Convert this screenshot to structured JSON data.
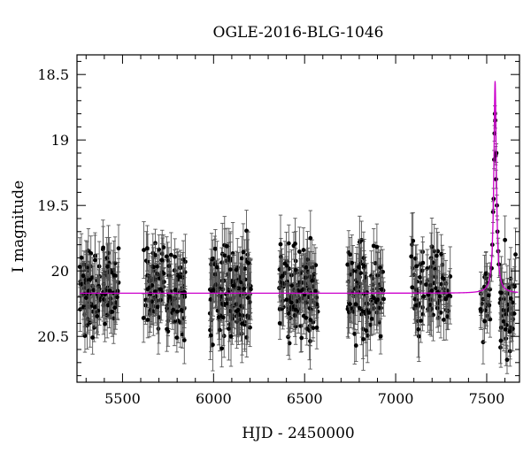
{
  "chart_data": {
    "type": "scatter",
    "title": "OGLE-2016-BLG-1046",
    "xlabel": "HJD - 2450000",
    "ylabel": "I magnitude",
    "xlim": [
      5250,
      7680
    ],
    "ylim": [
      20.85,
      18.35
    ],
    "y_inverted": true,
    "x_ticks": [
      5500,
      6000,
      6500,
      7000,
      7500
    ],
    "y_ticks": [
      18.5,
      19,
      19.5,
      20,
      20.5
    ],
    "x_tick_labels": [
      "5500",
      "6000",
      "6500",
      "7000",
      "7500"
    ],
    "y_tick_labels": [
      "18.5",
      "19",
      "19.5",
      "20",
      "20.5"
    ],
    "grid": false,
    "colors": {
      "points": "#000000",
      "errorbars": "#555555",
      "model": "#cc00cc"
    },
    "baseline_mag": 20.17,
    "series": [
      {
        "kind": "points_with_errorbars",
        "seasons": [
          {
            "start": 5265,
            "end": 5480,
            "n": 120,
            "mean_mag": 20.15,
            "scatter": 0.15,
            "err": 0.15
          },
          {
            "start": 5615,
            "end": 5845,
            "n": 130,
            "mean_mag": 20.16,
            "scatter": 0.16,
            "err": 0.15
          },
          {
            "start": 5980,
            "end": 6205,
            "n": 140,
            "mean_mag": 20.17,
            "scatter": 0.17,
            "err": 0.16
          },
          {
            "start": 6360,
            "end": 6575,
            "n": 130,
            "mean_mag": 20.16,
            "scatter": 0.16,
            "err": 0.15
          },
          {
            "start": 6735,
            "end": 6935,
            "n": 100,
            "mean_mag": 20.17,
            "scatter": 0.16,
            "err": 0.16
          },
          {
            "start": 7085,
            "end": 7300,
            "n": 90,
            "mean_mag": 20.15,
            "scatter": 0.15,
            "err": 0.16
          },
          {
            "start": 7455,
            "end": 7520,
            "n": 25,
            "mean_mag": 20.2,
            "scatter": 0.12,
            "err": 0.12
          },
          {
            "start": 7570,
            "end": 7660,
            "n": 45,
            "mean_mag": 20.22,
            "scatter": 0.18,
            "err": 0.16
          }
        ],
        "event_points": [
          {
            "x": 7527,
            "y": 19.98,
            "err": 0.1
          },
          {
            "x": 7531,
            "y": 19.8,
            "err": 0.09
          },
          {
            "x": 7535,
            "y": 19.55,
            "err": 0.08
          },
          {
            "x": 7538,
            "y": 19.45,
            "err": 0.08
          },
          {
            "x": 7541,
            "y": 19.15,
            "err": 0.07
          },
          {
            "x": 7543,
            "y": 18.95,
            "err": 0.06
          },
          {
            "x": 7545,
            "y": 18.8,
            "err": 0.06
          },
          {
            "x": 7547,
            "y": 18.85,
            "err": 0.06
          },
          {
            "x": 7549,
            "y": 19.12,
            "err": 0.07
          },
          {
            "x": 7551,
            "y": 19.3,
            "err": 0.07
          },
          {
            "x": 7553,
            "y": 19.1,
            "err": 0.07
          },
          {
            "x": 7556,
            "y": 19.5,
            "err": 0.08
          },
          {
            "x": 7559,
            "y": 19.7,
            "err": 0.09
          },
          {
            "x": 7563,
            "y": 19.85,
            "err": 0.1
          },
          {
            "x": 7567,
            "y": 19.95,
            "err": 0.1
          }
        ]
      },
      {
        "kind": "model_curve",
        "baseline": 20.17,
        "t0": 7546,
        "peak_mag": 18.55,
        "width_days": 9
      }
    ]
  }
}
